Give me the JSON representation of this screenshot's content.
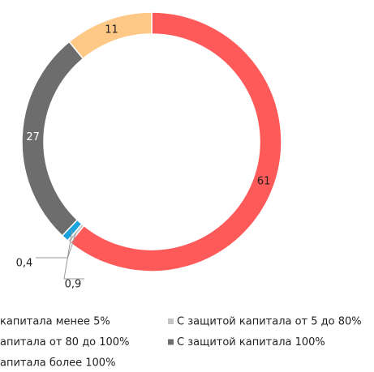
{
  "chart_data": {
    "type": "donut",
    "categories": [
      "капитала менее 5%",
      "С защитой капитала от 5 до 80%",
      "апитала от 80 до 100%",
      "С защитой капитала 100%",
      "апитала более 100%"
    ],
    "values": [
      61,
      0.4,
      0.9,
      27,
      11
    ],
    "value_labels": [
      "61",
      "0,4",
      "0,9",
      "27",
      "11"
    ],
    "colors": [
      "#fe5a5a",
      "#c4c4c4",
      "#1aa3dc",
      "#6d6d6d",
      "#fec887"
    ]
  }
}
